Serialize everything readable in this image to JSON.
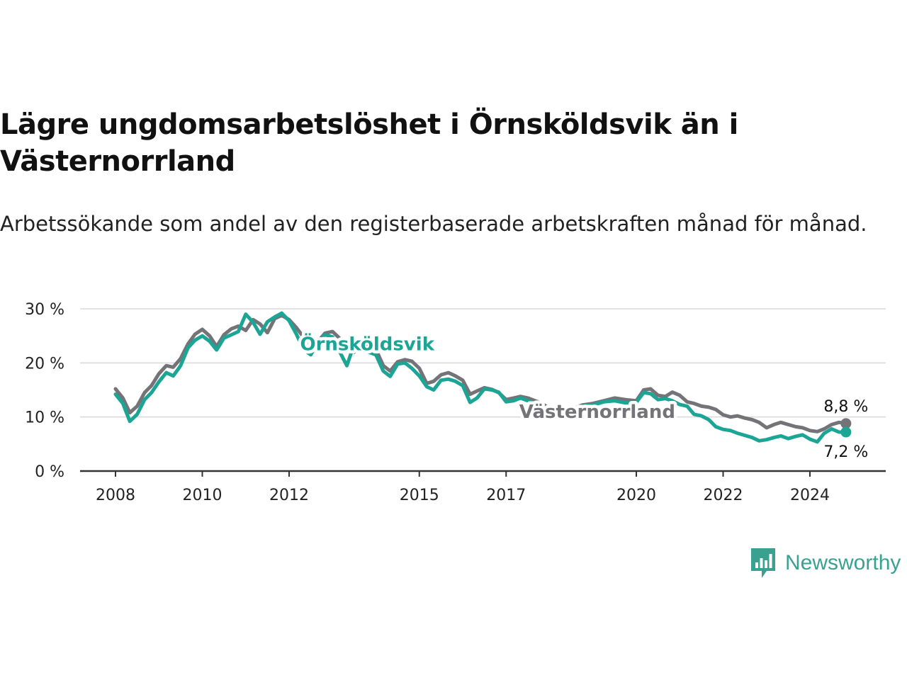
{
  "title": "Lägre ungdomsarbetslöshet i Örnsköldsvik än i Västernorrland",
  "subtitle": "Arbetssökande som andel av den registerbaserade arbetskraften månad för månad.",
  "brand": "Newsworthy",
  "colors": {
    "ornskoldsvik": "#1aa595",
    "vasternorrland": "#737378",
    "axis": "#333333",
    "grid": "#d9d9d9",
    "brand": "#3aa191"
  },
  "chart_data": {
    "type": "line",
    "title": "Lägre ungdomsarbetslöshet i Örnsköldsvik än i Västernorrland",
    "subtitle": "Arbetssökande som andel av den registerbaserade arbetskraften månad för månad.",
    "xlabel": "",
    "ylabel": "",
    "xlim": [
      2008.0,
      2025.8
    ],
    "ylim": [
      0,
      30
    ],
    "x_ticks": [
      2008,
      2010,
      2012,
      2015,
      2017,
      2020,
      2022,
      2024
    ],
    "x_tick_labels": [
      "2008",
      "2010",
      "2012",
      "2015",
      "2017",
      "2020",
      "2022",
      "2024"
    ],
    "y_ticks": [
      0,
      10,
      20,
      30
    ],
    "y_tick_labels": [
      "0 %",
      "10 %",
      "20 %",
      "30 %"
    ],
    "grid": "horizontal",
    "series": [
      {
        "name": "Västernorrland",
        "color": "#737378",
        "end_label": "8,8 %",
        "x": [
          2008.0,
          2008.17,
          2008.33,
          2008.5,
          2008.67,
          2008.83,
          2009.0,
          2009.17,
          2009.33,
          2009.5,
          2009.67,
          2009.83,
          2010.0,
          2010.17,
          2010.33,
          2010.5,
          2010.67,
          2010.83,
          2011.0,
          2011.17,
          2011.33,
          2011.5,
          2011.67,
          2011.83,
          2012.0,
          2012.17,
          2012.33,
          2012.5,
          2012.67,
          2012.83,
          2013.0,
          2013.17,
          2013.33,
          2013.5,
          2013.67,
          2013.83,
          2014.0,
          2014.17,
          2014.33,
          2014.5,
          2014.67,
          2014.83,
          2015.0,
          2015.17,
          2015.33,
          2015.5,
          2015.67,
          2015.83,
          2016.0,
          2016.17,
          2016.33,
          2016.5,
          2016.67,
          2016.83,
          2017.0,
          2017.17,
          2017.33,
          2017.5,
          2017.67,
          2017.83,
          2018.0,
          2018.25,
          2018.5,
          2018.75,
          2019.0,
          2019.25,
          2019.5,
          2019.75,
          2020.0,
          2020.17,
          2020.33,
          2020.5,
          2020.67,
          2020.83,
          2021.0,
          2021.17,
          2021.33,
          2021.5,
          2021.67,
          2021.83,
          2022.0,
          2022.17,
          2022.33,
          2022.5,
          2022.67,
          2022.83,
          2023.0,
          2023.17,
          2023.33,
          2023.5,
          2023.67,
          2023.83,
          2024.0,
          2024.17,
          2024.33,
          2024.5,
          2024.67,
          2024.83
        ],
        "values": [
          15.2,
          13.5,
          10.8,
          12.0,
          14.5,
          15.8,
          18.0,
          19.5,
          19.2,
          20.8,
          23.5,
          25.3,
          26.2,
          25.0,
          23.0,
          25.2,
          26.3,
          26.8,
          26.0,
          28.0,
          27.2,
          25.6,
          28.2,
          28.8,
          28.0,
          26.5,
          24.8,
          22.5,
          24.0,
          25.5,
          25.8,
          24.5,
          23.0,
          22.0,
          23.5,
          22.8,
          22.5,
          19.5,
          18.5,
          20.2,
          20.6,
          20.3,
          19.0,
          16.2,
          16.6,
          17.8,
          18.2,
          17.6,
          16.8,
          14.2,
          14.8,
          15.4,
          15.1,
          14.5,
          13.2,
          13.5,
          13.8,
          13.5,
          13.0,
          12.5,
          11.5,
          11.0,
          11.3,
          12.2,
          12.5,
          13.0,
          13.5,
          13.2,
          13.0,
          15.0,
          15.2,
          14.0,
          13.8,
          14.6,
          14.0,
          12.8,
          12.5,
          12.0,
          11.8,
          11.4,
          10.4,
          10.0,
          10.2,
          9.8,
          9.5,
          9.0,
          8.0,
          8.6,
          9.0,
          8.6,
          8.2,
          8.0,
          7.5,
          7.3,
          7.8,
          8.6,
          9.0,
          8.8
        ]
      },
      {
        "name": "Örnsköldsvik",
        "color": "#1aa595",
        "end_label": "7,2 %",
        "x": [
          2008.0,
          2008.17,
          2008.33,
          2008.5,
          2008.67,
          2008.83,
          2009.0,
          2009.17,
          2009.33,
          2009.5,
          2009.67,
          2009.83,
          2010.0,
          2010.17,
          2010.33,
          2010.5,
          2010.67,
          2010.83,
          2011.0,
          2011.17,
          2011.33,
          2011.5,
          2011.67,
          2011.83,
          2012.0,
          2012.17,
          2012.33,
          2012.5,
          2012.67,
          2012.83,
          2013.0,
          2013.17,
          2013.33,
          2013.5,
          2013.67,
          2013.83,
          2014.0,
          2014.17,
          2014.33,
          2014.5,
          2014.67,
          2014.83,
          2015.0,
          2015.17,
          2015.33,
          2015.5,
          2015.67,
          2015.83,
          2016.0,
          2016.17,
          2016.33,
          2016.5,
          2016.67,
          2016.83,
          2017.0,
          2017.17,
          2017.33,
          2017.5,
          2017.67,
          2017.83,
          2018.0,
          2018.25,
          2018.5,
          2018.75,
          2019.0,
          2019.25,
          2019.5,
          2019.75,
          2020.0,
          2020.17,
          2020.33,
          2020.5,
          2020.67,
          2020.83,
          2021.0,
          2021.17,
          2021.33,
          2021.5,
          2021.67,
          2021.83,
          2022.0,
          2022.17,
          2022.33,
          2022.5,
          2022.67,
          2022.83,
          2023.0,
          2023.17,
          2023.33,
          2023.5,
          2023.67,
          2023.83,
          2024.0,
          2024.17,
          2024.33,
          2024.5,
          2024.67,
          2024.83
        ],
        "values": [
          14.2,
          12.5,
          9.2,
          10.5,
          13.2,
          14.5,
          16.5,
          18.2,
          17.6,
          19.5,
          22.8,
          24.2,
          25.0,
          24.0,
          22.4,
          24.6,
          25.2,
          25.8,
          29.0,
          27.5,
          25.3,
          27.6,
          28.5,
          29.2,
          27.8,
          25.3,
          22.5,
          21.5,
          24.0,
          25.2,
          24.8,
          22.0,
          19.5,
          23.5,
          22.5,
          22.0,
          21.5,
          18.5,
          17.5,
          19.8,
          20.0,
          19.0,
          17.6,
          15.6,
          15.0,
          16.8,
          17.0,
          16.6,
          15.8,
          12.7,
          13.5,
          15.2,
          15.0,
          14.6,
          12.8,
          13.0,
          13.5,
          13.0,
          12.5,
          12.0,
          11.0,
          10.5,
          10.8,
          12.0,
          12.2,
          12.8,
          13.0,
          12.6,
          12.7,
          14.5,
          14.3,
          13.2,
          13.4,
          13.0,
          12.3,
          12.0,
          10.5,
          10.2,
          9.5,
          8.2,
          7.7,
          7.5,
          7.0,
          6.6,
          6.2,
          5.6,
          5.8,
          6.2,
          6.5,
          6.0,
          6.4,
          6.7,
          5.9,
          5.4,
          7.0,
          7.8,
          7.2,
          7.2
        ]
      }
    ],
    "series_labels": [
      {
        "text": "Örnsköldsvik",
        "series": "Örnsköldsvik",
        "x": 2013.8,
        "y": 23.5
      },
      {
        "text": "Västernorrland",
        "series": "Västernorrland",
        "x": 2019.1,
        "y": 11.0
      }
    ]
  }
}
